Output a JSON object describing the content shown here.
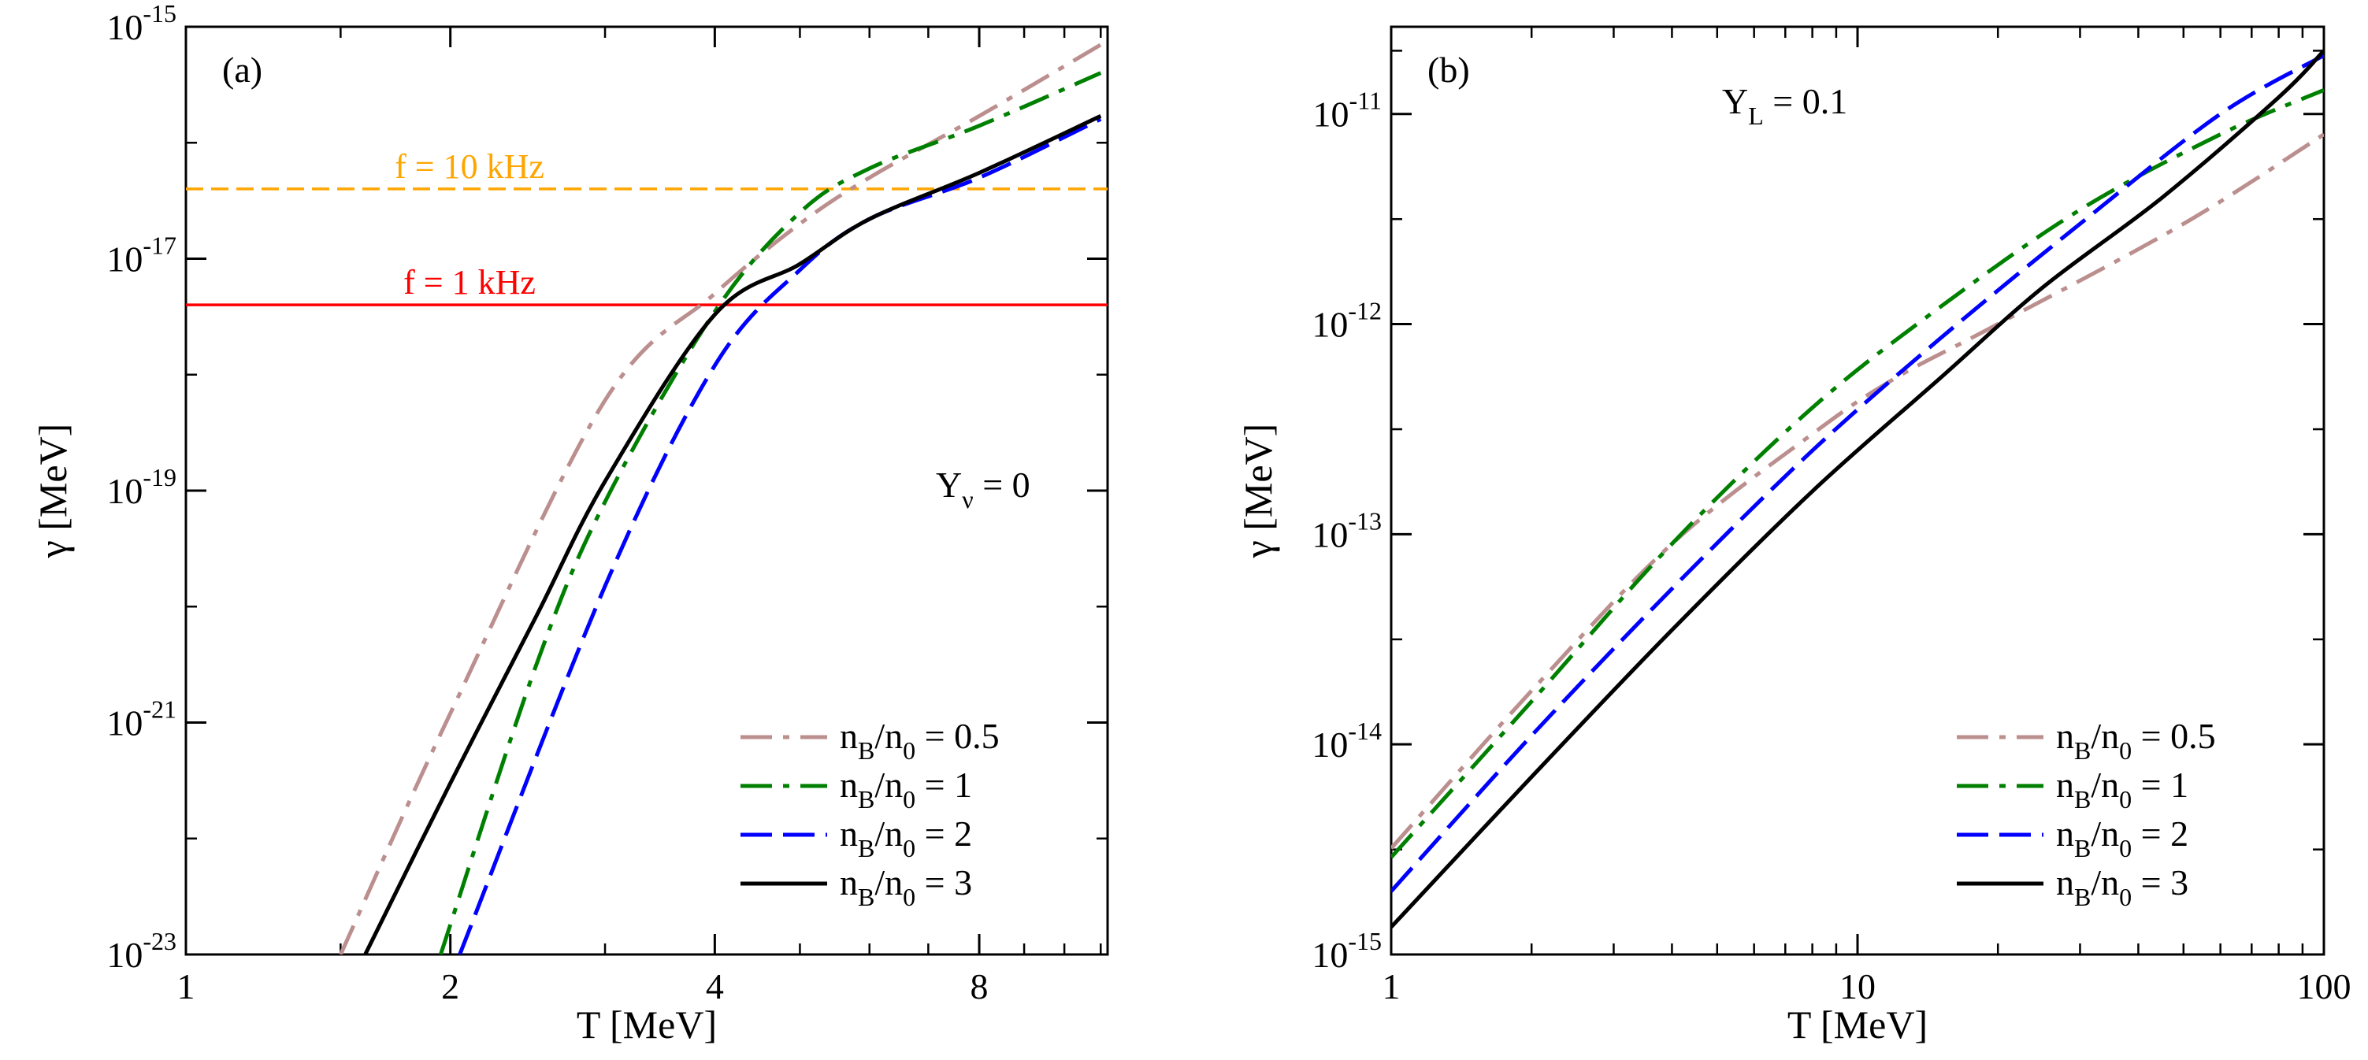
{
  "chart_data": [
    {
      "id": "a",
      "type": "line",
      "panel_label": "(a)",
      "xscale": "log2",
      "yscale": "log10",
      "xlim": [
        1,
        11.2
      ],
      "ylim": [
        1e-23,
        1e-15
      ],
      "xlabel": "T [MeV]",
      "ylabel": "γ [MeV]",
      "x_ticks": [
        {
          "value": 1,
          "label": "1"
        },
        {
          "value": 2,
          "label": "2"
        },
        {
          "value": 4,
          "label": "4"
        },
        {
          "value": 8,
          "label": "8"
        }
      ],
      "y_ticks": [
        {
          "value": 1e-23,
          "base": "10",
          "exp": "-23"
        },
        {
          "value": 1e-21,
          "base": "10",
          "exp": "-21"
        },
        {
          "value": 1e-19,
          "base": "10",
          "exp": "-19"
        },
        {
          "value": 1e-17,
          "base": "10",
          "exp": "-17"
        },
        {
          "value": 1e-15,
          "base": "10",
          "exp": "-15"
        }
      ],
      "annotation": {
        "main": "Y",
        "sub": "ν",
        "rest": " = 0"
      },
      "hlines": [
        {
          "name": "f-10-khz",
          "y": 4e-17,
          "label": "f = 10 kHz",
          "color": "#ffa500",
          "dash": "dashed"
        },
        {
          "name": "f-1-khz",
          "y": 4e-18,
          "label": "f = 1 kHz",
          "color": "#ff0000",
          "dash": "solid"
        }
      ],
      "legend_position": "lower-right",
      "series": [
        {
          "name": "nb-0.5",
          "label": "0.5",
          "color": "#bc8f8f",
          "dash": "dashdot",
          "points": [
            [
              1.5,
              1e-23
            ],
            [
              2,
              1.2e-21
            ],
            [
              3,
              6e-19
            ],
            [
              4,
              5e-18
            ],
            [
              5,
              2e-17
            ],
            [
              6,
              5e-17
            ],
            [
              8,
              1.7e-16
            ],
            [
              11,
              7e-16
            ]
          ]
        },
        {
          "name": "nb-1",
          "label": "1",
          "color": "#008000",
          "dash": "dashdot",
          "points": [
            [
              1.95,
              1e-23
            ],
            [
              2.5,
              3e-21
            ],
            [
              3,
              8e-20
            ],
            [
              4,
              3.5e-18
            ],
            [
              5,
              2.5e-17
            ],
            [
              6,
              6e-17
            ],
            [
              8,
              1.4e-16
            ],
            [
              11,
              4e-16
            ]
          ]
        },
        {
          "name": "nb-2",
          "label": "2",
          "color": "#0000ff",
          "dash": "dashed",
          "points": [
            [
              2.05,
              1e-23
            ],
            [
              3,
              1.5e-20
            ],
            [
              4,
              1.2e-18
            ],
            [
              5,
              8e-18
            ],
            [
              6,
              2.2e-17
            ],
            [
              8,
              5e-17
            ],
            [
              11,
              1.6e-16
            ]
          ]
        },
        {
          "name": "nb-3",
          "label": "3",
          "color": "#000000",
          "dash": "solid",
          "points": [
            [
              1.6,
              1e-23
            ],
            [
              2,
              3e-22
            ],
            [
              2.5,
              8e-21
            ],
            [
              3,
              1.2e-19
            ],
            [
              4,
              3.3e-18
            ],
            [
              5,
              9e-18
            ],
            [
              6,
              2.2e-17
            ],
            [
              8,
              5.5e-17
            ],
            [
              11,
              1.7e-16
            ]
          ]
        }
      ]
    },
    {
      "id": "b",
      "type": "line",
      "panel_label": "(b)",
      "xscale": "log10",
      "yscale": "log10",
      "xlim": [
        1,
        100
      ],
      "ylim": [
        1e-15,
        2.6e-11
      ],
      "xlabel": "T [MeV]",
      "ylabel": "γ [MeV]",
      "x_ticks": [
        {
          "value": 1,
          "label": "1"
        },
        {
          "value": 10,
          "label": "10"
        },
        {
          "value": 100,
          "label": "100"
        }
      ],
      "y_ticks": [
        {
          "value": 1e-15,
          "base": "10",
          "exp": "-15"
        },
        {
          "value": 1e-14,
          "base": "10",
          "exp": "-14"
        },
        {
          "value": 1e-13,
          "base": "10",
          "exp": "-13"
        },
        {
          "value": 1e-12,
          "base": "10",
          "exp": "-12"
        },
        {
          "value": 1e-11,
          "base": "10",
          "exp": "-11"
        }
      ],
      "annotation": {
        "main": "Y",
        "sub": "L",
        "rest": " = 0.1"
      },
      "hlines": [],
      "legend_position": "lower-right",
      "series": [
        {
          "name": "nb-0.5",
          "label": "0.5",
          "color": "#bc8f8f",
          "dash": "dashdot",
          "points": [
            [
              1,
              3.2e-15
            ],
            [
              2,
              1.8e-14
            ],
            [
              4,
              9e-14
            ],
            [
              8,
              3e-13
            ],
            [
              12,
              5.5e-13
            ],
            [
              20,
              1e-12
            ],
            [
              50,
              3e-12
            ],
            [
              100,
              8e-12
            ]
          ]
        },
        {
          "name": "nb-1",
          "label": "1",
          "color": "#008000",
          "dash": "dashdot",
          "points": [
            [
              1,
              2.9e-15
            ],
            [
              2,
              1.6e-14
            ],
            [
              4,
              9e-14
            ],
            [
              8,
              4e-13
            ],
            [
              15,
              1.2e-12
            ],
            [
              30,
              3.5e-12
            ],
            [
              60,
              8e-12
            ],
            [
              100,
              1.3e-11
            ]
          ]
        },
        {
          "name": "nb-2",
          "label": "2",
          "color": "#0000ff",
          "dash": "dashed",
          "points": [
            [
              1,
              2e-15
            ],
            [
              2,
              1.1e-14
            ],
            [
              4,
              5.5e-14
            ],
            [
              8,
              2.5e-13
            ],
            [
              15,
              8.5e-13
            ],
            [
              30,
              3e-12
            ],
            [
              60,
              1e-11
            ],
            [
              100,
              1.9e-11
            ]
          ]
        },
        {
          "name": "nb-3",
          "label": "3",
          "color": "#000000",
          "dash": "solid",
          "points": [
            [
              1,
              1.35e-15
            ],
            [
              2,
              7e-15
            ],
            [
              4,
              3.5e-14
            ],
            [
              8,
              1.6e-13
            ],
            [
              15,
              5.5e-13
            ],
            [
              25,
              1.5e-12
            ],
            [
              45,
              4e-12
            ],
            [
              80,
              1.2e-11
            ],
            [
              100,
              2e-11
            ]
          ]
        }
      ]
    }
  ],
  "legend": {
    "prefix_main": "n",
    "prefix_sub": "B",
    "slash": "/n",
    "denom_sub": "0",
    "eq": " = "
  }
}
